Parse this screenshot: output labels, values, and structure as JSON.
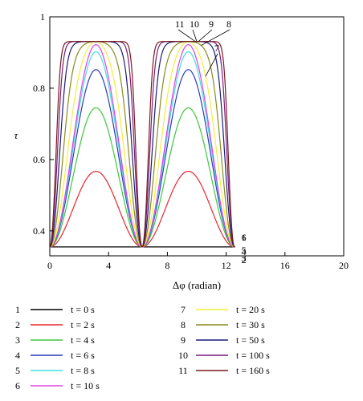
{
  "chart_data": {
    "type": "line",
    "xlabel": "Δφ (radian)",
    "ylabel": "τ",
    "xlim": [
      0,
      20
    ],
    "ylim": [
      0.33,
      1.0
    ],
    "x_ticks": [
      "0",
      "4",
      "8",
      "12",
      "16",
      "20"
    ],
    "y_ticks": [
      "0.4",
      "0.6",
      "0.8",
      "1"
    ],
    "grid": false,
    "legend_position": "bottom",
    "x_range_of_curves": [
      0,
      12.6
    ],
    "curve_label_annotations": [
      "1",
      "2",
      "3",
      "4",
      "5",
      "6",
      "7",
      "8",
      "9",
      "10",
      "11"
    ],
    "series": [
      {
        "label": "1",
        "legend": "t = 0 s",
        "color": "#000000",
        "min": 0.355,
        "max": 0.355
      },
      {
        "label": "2",
        "legend": "t = 2 s",
        "color": "#e8262b",
        "min": 0.355,
        "max": 0.567
      },
      {
        "label": "3",
        "legend": "t = 4 s",
        "color": "#3cc83c",
        "min": 0.355,
        "max": 0.745
      },
      {
        "label": "4",
        "legend": "t = 6 s",
        "color": "#2a3ab8",
        "min": 0.355,
        "max": 0.852
      },
      {
        "label": "5",
        "legend": "t = 8 s",
        "color": "#3ee0e0",
        "min": 0.355,
        "max": 0.902
      },
      {
        "label": "6",
        "legend": "t = 10 s",
        "color": "#e040e0",
        "min": 0.355,
        "max": 0.922
      },
      {
        "label": "7",
        "legend": "t = 20 s",
        "color": "#f2ee3a",
        "min": 0.355,
        "max": 0.93
      },
      {
        "label": "8",
        "legend": "t = 30 s",
        "color": "#8a8a1e",
        "min": 0.355,
        "max": 0.931
      },
      {
        "label": "9",
        "legend": "t = 50 s",
        "color": "#1c1c7a",
        "min": 0.355,
        "max": 0.931
      },
      {
        "label": "10",
        "legend": "t = 100 s",
        "color": "#7a1c7a",
        "min": 0.355,
        "max": 0.931
      },
      {
        "label": "11",
        "legend": "t = 160 s",
        "color": "#7a1a1e",
        "min": 0.355,
        "max": 0.931
      }
    ]
  }
}
